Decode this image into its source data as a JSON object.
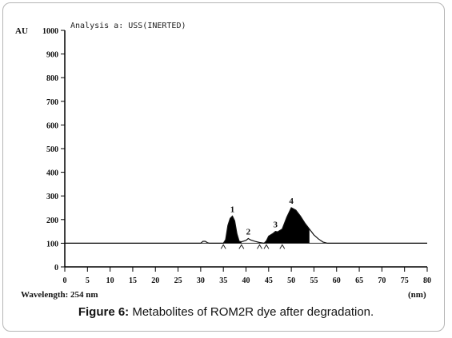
{
  "figure": {
    "caption_label": "Figure 6:",
    "caption_text": "Metabolites of ROM2R dye after degradation.",
    "header_text": "Analysis a: USS(INERTED)",
    "wavelength_text": "Wavelength: 254 nm"
  },
  "chart_data": {
    "type": "line",
    "ylabel": "AU",
    "xlabel": "(nm)",
    "xlim": [
      0,
      80
    ],
    "ylim": [
      0,
      1000
    ],
    "x_ticks": [
      0,
      5,
      10,
      15,
      20,
      25,
      30,
      35,
      40,
      45,
      50,
      55,
      60,
      65,
      70,
      75,
      80
    ],
    "y_ticks": [
      0,
      100,
      200,
      300,
      400,
      500,
      600,
      700,
      800,
      900,
      1000
    ],
    "baseline": 100,
    "peaks": [
      {
        "label": "1",
        "x": 37,
        "y": 215
      },
      {
        "label": "2",
        "x": 40.5,
        "y": 120
      },
      {
        "label": "3",
        "x": 46.5,
        "y": 150
      },
      {
        "label": "4",
        "x": 50,
        "y": 250
      }
    ],
    "series": [
      {
        "x": [
          0,
          30,
          30.5,
          31,
          31.5,
          32,
          33,
          34,
          35,
          35.5,
          36,
          36.5,
          37,
          37.5,
          38,
          38.5,
          39,
          40,
          40.5,
          41,
          42,
          43,
          44,
          44.5,
          45,
          46,
          46.5,
          47,
          48,
          49,
          50,
          51,
          52,
          53,
          54,
          55,
          56,
          57,
          58,
          59,
          60,
          70,
          80
        ],
        "y": [
          100,
          100,
          108,
          108,
          102,
          100,
          100,
          100,
          100,
          115,
          175,
          205,
          215,
          195,
          140,
          108,
          106,
          112,
          120,
          114,
          108,
          103,
          100,
          110,
          130,
          142,
          150,
          148,
          160,
          210,
          250,
          240,
          215,
          185,
          160,
          135,
          118,
          105,
          100,
          100,
          100,
          100,
          100
        ]
      }
    ]
  }
}
